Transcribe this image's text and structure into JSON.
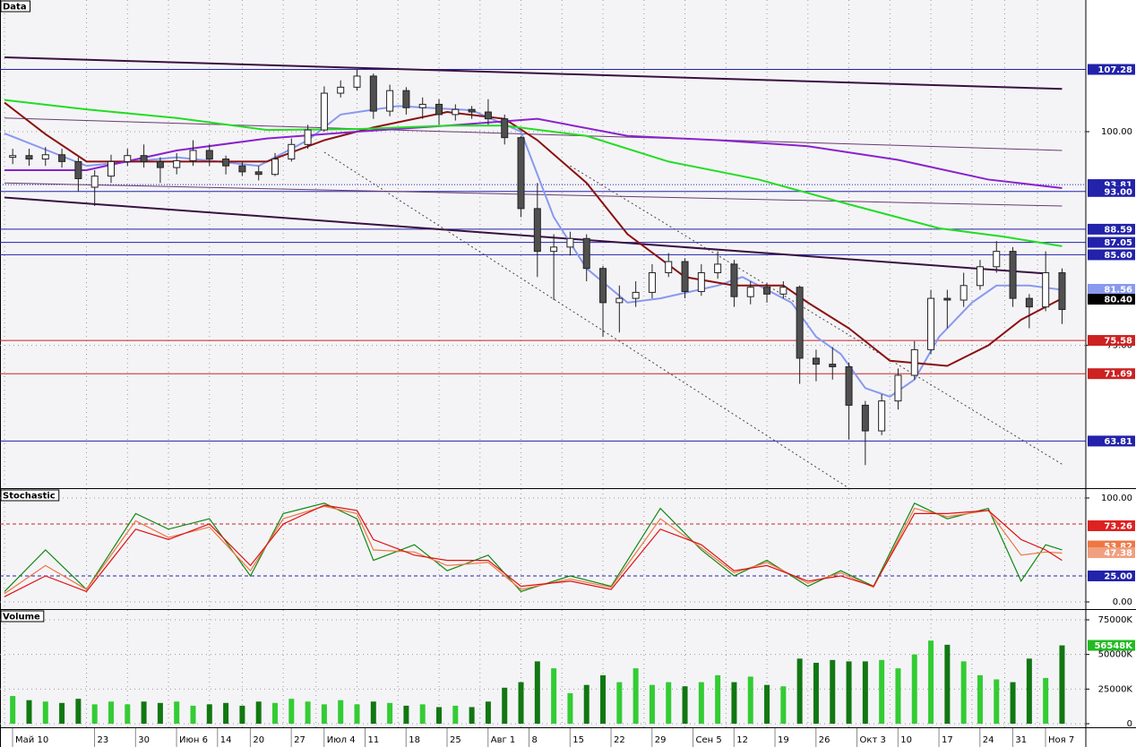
{
  "chart_data": [
    {
      "type": "candlestick",
      "title": "Data",
      "x": [
        1,
        3,
        5,
        7,
        9,
        11,
        13,
        15,
        17,
        19,
        21,
        23,
        25,
        27,
        29,
        31,
        33,
        35,
        37,
        39,
        41,
        43,
        45,
        47,
        49,
        51,
        53,
        55,
        57,
        59,
        61,
        63,
        65,
        67,
        69,
        71,
        73,
        75,
        77,
        79,
        81,
        83,
        85,
        87,
        89,
        91,
        93,
        95,
        97,
        99,
        101,
        103,
        105,
        107,
        109,
        111,
        113,
        115,
        117,
        119,
        121,
        123,
        125,
        127,
        129
      ],
      "open": [
        97.0,
        97.2,
        96.8,
        97.3,
        96.5,
        93.5,
        94.8,
        96.5,
        97.2,
        96.5,
        95.8,
        96.6,
        97.8,
        96.8,
        96.0,
        95.3,
        95.0,
        96.8,
        98.5,
        100.2,
        104.5,
        105.2,
        106.5,
        102.4,
        104.8,
        102.8,
        103.2,
        102.0,
        102.6,
        102.3,
        101.5,
        99.3,
        91.0,
        86.0,
        86.5,
        87.5,
        84.0,
        80.0,
        80.5,
        81.2,
        83.5,
        84.8,
        81.3,
        83.5,
        84.5,
        80.7,
        81.8,
        81.0,
        81.8,
        73.5,
        72.8,
        72.5,
        68.0,
        65.0,
        68.5,
        71.5,
        74.5,
        80.5,
        80.3,
        82.0,
        84.2,
        86.0,
        80.5,
        79.5,
        83.5
      ],
      "high": [
        98.0,
        98.0,
        98.2,
        98.0,
        97.0,
        95.5,
        97.3,
        98.0,
        98.5,
        97.0,
        97.5,
        99.0,
        98.5,
        97.2,
        96.5,
        96.0,
        97.5,
        99.2,
        100.8,
        105.3,
        106.0,
        107.3,
        106.8,
        105.5,
        105.2,
        104.0,
        103.8,
        103.2,
        103.0,
        103.8,
        102.0,
        99.5,
        94.0,
        88.0,
        88.3,
        88.0,
        84.3,
        82.0,
        82.5,
        84.5,
        85.8,
        85.2,
        84.5,
        86.0,
        85.0,
        82.5,
        82.3,
        82.5,
        82.0,
        74.5,
        74.8,
        73.0,
        68.5,
        69.3,
        72.3,
        75.5,
        81.5,
        81.5,
        83.5,
        85.0,
        87.2,
        86.5,
        81.0,
        86.0,
        84.0
      ],
      "low": [
        96.2,
        96.0,
        96.0,
        95.8,
        93.0,
        91.3,
        94.0,
        96.0,
        95.8,
        94.0,
        95.0,
        96.0,
        96.0,
        95.0,
        94.8,
        94.3,
        94.8,
        96.5,
        98.0,
        100.0,
        104.0,
        104.8,
        101.5,
        101.8,
        102.0,
        101.5,
        100.8,
        101.3,
        101.5,
        100.8,
        98.5,
        90.0,
        83.0,
        80.3,
        85.5,
        82.5,
        76.0,
        76.5,
        79.5,
        80.5,
        83.0,
        80.5,
        80.8,
        82.8,
        79.5,
        79.8,
        80.0,
        80.5,
        70.5,
        70.8,
        71.0,
        64.0,
        61.0,
        64.5,
        67.5,
        71.0,
        74.0,
        77.0,
        79.5,
        81.5,
        83.5,
        79.5,
        77.0,
        79.0,
        77.5
      ],
      "close": [
        97.2,
        96.8,
        97.3,
        96.5,
        94.5,
        94.8,
        96.5,
        97.2,
        96.5,
        95.8,
        96.6,
        97.8,
        96.8,
        96.0,
        95.3,
        95.0,
        96.8,
        98.5,
        100.2,
        104.5,
        105.2,
        106.5,
        102.4,
        104.8,
        102.8,
        103.2,
        102.0,
        102.6,
        102.3,
        101.5,
        99.3,
        91.0,
        86.0,
        86.5,
        87.5,
        84.0,
        80.0,
        80.5,
        81.2,
        83.5,
        84.8,
        81.3,
        83.5,
        84.5,
        80.7,
        81.8,
        81.0,
        81.8,
        73.5,
        72.8,
        72.5,
        68.0,
        65.0,
        68.5,
        71.5,
        74.5,
        80.5,
        80.3,
        82.0,
        84.2,
        86.0,
        80.5,
        79.5,
        83.5,
        79.2
      ],
      "up_color": "#ffffff",
      "down_color": "#505050",
      "xlim": [
        -0.55,
        131.9
      ],
      "ylim": [
        58.3,
        115.4
      ],
      "yticks": [
        {
          "value": 100,
          "label": "100.00"
        },
        {
          "value": 75,
          "label": "75.00"
        }
      ],
      "overlays": [
        {
          "color": "#8899ee",
          "x": [
            0,
            10,
            21,
            31,
            37,
            41,
            48,
            57,
            63,
            67,
            71,
            76,
            80,
            87,
            90,
            93,
            96,
            99,
            102,
            105,
            108,
            111,
            114,
            118,
            121,
            125,
            129
          ],
          "values": [
            99.8,
            96,
            97,
            96,
            99,
            102,
            103,
            102.5,
            100,
            90,
            84,
            80,
            80.5,
            82,
            83,
            81.5,
            80,
            76,
            74,
            70,
            69,
            71,
            76,
            80,
            82,
            82,
            81.5
          ]
        },
        {
          "color": "#8b1010",
          "x": [
            0,
            5,
            10,
            21,
            32,
            39,
            45,
            54,
            61,
            65,
            71,
            76,
            83,
            89,
            95,
            98,
            103,
            108,
            115,
            120,
            124,
            129
          ],
          "values": [
            103.4,
            99.7,
            96.5,
            96.5,
            96.5,
            99,
            100.5,
            102.3,
            101.5,
            99,
            94,
            88,
            83,
            82,
            82,
            80,
            77,
            73.2,
            72.6,
            75,
            78,
            80.5
          ]
        },
        {
          "color": "#8a22cc",
          "x": [
            0,
            10,
            21,
            32,
            43,
            54,
            65,
            76,
            87,
            98,
            109,
            120,
            129
          ],
          "values": [
            95.5,
            95.5,
            97.8,
            99.2,
            100,
            100.7,
            101.5,
            99.5,
            99,
            98.3,
            96.7,
            94.4,
            93.4
          ]
        },
        {
          "color": "#22dd22",
          "x": [
            0,
            10,
            21,
            32,
            43,
            54,
            61,
            71,
            81,
            92,
            103,
            114,
            122,
            129
          ],
          "values": [
            103.7,
            102.6,
            101.6,
            100.2,
            100.3,
            100.7,
            100.7,
            99.5,
            96.5,
            94.4,
            91.5,
            88.7,
            87.7,
            86.6
          ]
        }
      ],
      "trend_lines": [
        {
          "color": "#3a1040",
          "style": "solid",
          "x": [
            0,
            129
          ],
          "values": [
            108.7,
            105.0
          ]
        },
        {
          "color": "#3a1040",
          "style": "solid",
          "x": [
            0,
            127
          ],
          "values": [
            92.3,
            83.4
          ]
        },
        {
          "color": "#6a3a70",
          "style": "thin",
          "x": [
            0,
            129
          ],
          "values": [
            101.6,
            97.8
          ]
        },
        {
          "color": "#6a3a70",
          "style": "thin",
          "x": [
            0,
            129
          ],
          "values": [
            94.0,
            91.3
          ]
        },
        {
          "color": "#444444",
          "style": "dashed",
          "x": [
            39,
            103
          ],
          "values": [
            97.6,
            58.3
          ]
        },
        {
          "color": "#444444",
          "style": "dashed",
          "x": [
            69,
            129
          ],
          "values": [
            96,
            61.1
          ]
        }
      ],
      "levels": [
        {
          "value": 107.28,
          "label": "107.28",
          "color": "#2222aa",
          "style": "solid"
        },
        {
          "value": 93.81,
          "label": "93.81",
          "color": "#2222aa",
          "style": "dotted"
        },
        {
          "value": 93.0,
          "label": "93.00",
          "color": "#2222aa",
          "style": "solid"
        },
        {
          "value": 88.59,
          "label": "88.59",
          "color": "#2222aa",
          "style": "solid"
        },
        {
          "value": 87.05,
          "label": "87.05",
          "color": "#2222aa",
          "style": "solid"
        },
        {
          "value": 85.6,
          "label": "85.60",
          "color": "#2222aa",
          "style": "solid"
        },
        {
          "value": 75.58,
          "label": "75.58",
          "color": "#cc2222",
          "style": "solid"
        },
        {
          "value": 71.69,
          "label": "71.69",
          "color": "#cc2222",
          "style": "solid"
        },
        {
          "value": 63.81,
          "label": "63.81",
          "color": "#2222aa",
          "style": "solid"
        }
      ],
      "markers": [
        {
          "value": 81.56,
          "label": "81.56",
          "color": "#8899ee"
        },
        {
          "value": 80.4,
          "label": "80.40",
          "color": "#000000"
        }
      ]
    },
    {
      "type": "line",
      "title": "Stochastic",
      "x": [
        0,
        5,
        10,
        16,
        20,
        25,
        30,
        34,
        39,
        43,
        45,
        50,
        54,
        59,
        63,
        69,
        74,
        80,
        85,
        89,
        93,
        98,
        102,
        106,
        111,
        115,
        120,
        124,
        127,
        129
      ],
      "series": [
        {
          "color": "#118811",
          "values": [
            10,
            50,
            12,
            85,
            70,
            80,
            25,
            85,
            95,
            80,
            40,
            55,
            30,
            45,
            10,
            25,
            15,
            90,
            50,
            25,
            40,
            15,
            30,
            15,
            95,
            80,
            90,
            20,
            55,
            50
          ]
        },
        {
          "color": "#ee7744",
          "values": [
            8,
            35,
            12,
            78,
            62,
            72,
            30,
            80,
            92,
            85,
            50,
            48,
            35,
            38,
            12,
            22,
            14,
            80,
            52,
            28,
            38,
            18,
            28,
            14,
            90,
            82,
            88,
            45,
            48,
            47
          ]
        },
        {
          "color": "#dd1111",
          "values": [
            5,
            25,
            10,
            70,
            60,
            75,
            35,
            75,
            93,
            88,
            60,
            45,
            40,
            40,
            15,
            20,
            12,
            70,
            55,
            30,
            35,
            20,
            25,
            15,
            85,
            85,
            88,
            60,
            50,
            40
          ]
        }
      ],
      "xlim": [
        -0.55,
        131.9
      ],
      "ylim": [
        -6.9,
        108.6
      ],
      "yticks": [
        {
          "value": 100,
          "label": "100.00"
        },
        {
          "value": 0,
          "label": "0.00"
        }
      ],
      "levels": [
        {
          "value": 75,
          "color": "#cc2222",
          "style": "dashed"
        },
        {
          "value": 25,
          "label": "25.00",
          "color": "#2222aa",
          "style": "dashed"
        }
      ],
      "markers": [
        {
          "value": 73.26,
          "label": "73.26",
          "color": "#dd2222"
        },
        {
          "value": 53.82,
          "label": "53.82",
          "color": "#ee7744"
        },
        {
          "value": 47.38,
          "label": "47.38",
          "color": "#f0a080"
        }
      ]
    },
    {
      "type": "bar",
      "title": "Volume",
      "x": [
        1,
        3,
        5,
        7,
        9,
        11,
        13,
        15,
        17,
        19,
        21,
        23,
        25,
        27,
        29,
        31,
        33,
        35,
        37,
        39,
        41,
        43,
        45,
        47,
        49,
        51,
        53,
        55,
        57,
        59,
        61,
        63,
        65,
        67,
        69,
        71,
        73,
        75,
        77,
        79,
        81,
        83,
        85,
        87,
        89,
        91,
        93,
        95,
        97,
        99,
        101,
        103,
        105,
        107,
        109,
        111,
        113,
        115,
        117,
        119,
        121,
        123,
        125,
        127,
        129
      ],
      "values": [
        20000,
        17000,
        16000,
        15000,
        18000,
        14000,
        16000,
        14000,
        16000,
        15000,
        16000,
        13000,
        14000,
        15000,
        13000,
        16000,
        15000,
        18000,
        16000,
        14000,
        17000,
        14000,
        16000,
        15000,
        13000,
        14000,
        12000,
        13000,
        12000,
        16000,
        26000,
        30000,
        45000,
        40000,
        22000,
        28000,
        35000,
        30000,
        40000,
        28000,
        30000,
        27000,
        30000,
        35000,
        30000,
        34000,
        28000,
        27000,
        47000,
        44000,
        46000,
        45000,
        45000,
        46000,
        40000,
        50000,
        60000,
        57000,
        45000,
        35000,
        32000,
        30000,
        47000,
        33000,
        56548
      ],
      "up_color": "#33cc33",
      "down_color": "#117711",
      "xlim": [
        -0.55,
        131.9
      ],
      "ylim": [
        -2586,
        82112
      ],
      "yticks": [
        0,
        {
          "value": 25000,
          "label": "25000K"
        },
        {
          "value": 50000,
          "label": "50000K"
        },
        {
          "value": 75000,
          "label": "75000K"
        }
      ],
      "markers": [
        {
          "value": 56548,
          "label": "56548K",
          "color": "#22bb22"
        }
      ],
      "xticks": [
        {
          "value": 0,
          "label": "Май 10"
        },
        {
          "value": 10,
          "label": "23"
        },
        {
          "value": 15,
          "label": "30"
        },
        {
          "value": 20,
          "label": "Июн 6"
        },
        {
          "value": 25,
          "label": "14"
        },
        {
          "value": 29,
          "label": "20"
        },
        {
          "value": 34,
          "label": "27"
        },
        {
          "value": 38,
          "label": "Июл 4"
        },
        {
          "value": 43,
          "label": "11"
        },
        {
          "value": 48,
          "label": "18"
        },
        {
          "value": 53,
          "label": "25"
        },
        {
          "value": 58,
          "label": "Авг 1"
        },
        {
          "value": 63,
          "label": "8"
        },
        {
          "value": 68,
          "label": "15"
        },
        {
          "value": 73,
          "label": "22"
        },
        {
          "value": 78,
          "label": "29"
        },
        {
          "value": 83,
          "label": "Сен 5"
        },
        {
          "value": 88,
          "label": "12"
        },
        {
          "value": 93,
          "label": "19"
        },
        {
          "value": 98,
          "label": "26"
        },
        {
          "value": 103,
          "label": "Окт 3"
        },
        {
          "value": 108,
          "label": "10"
        },
        {
          "value": 113,
          "label": "17"
        },
        {
          "value": 118,
          "label": "24"
        },
        {
          "value": 122,
          "label": "31"
        },
        {
          "value": 126,
          "label": "Ноя 7"
        }
      ]
    }
  ]
}
